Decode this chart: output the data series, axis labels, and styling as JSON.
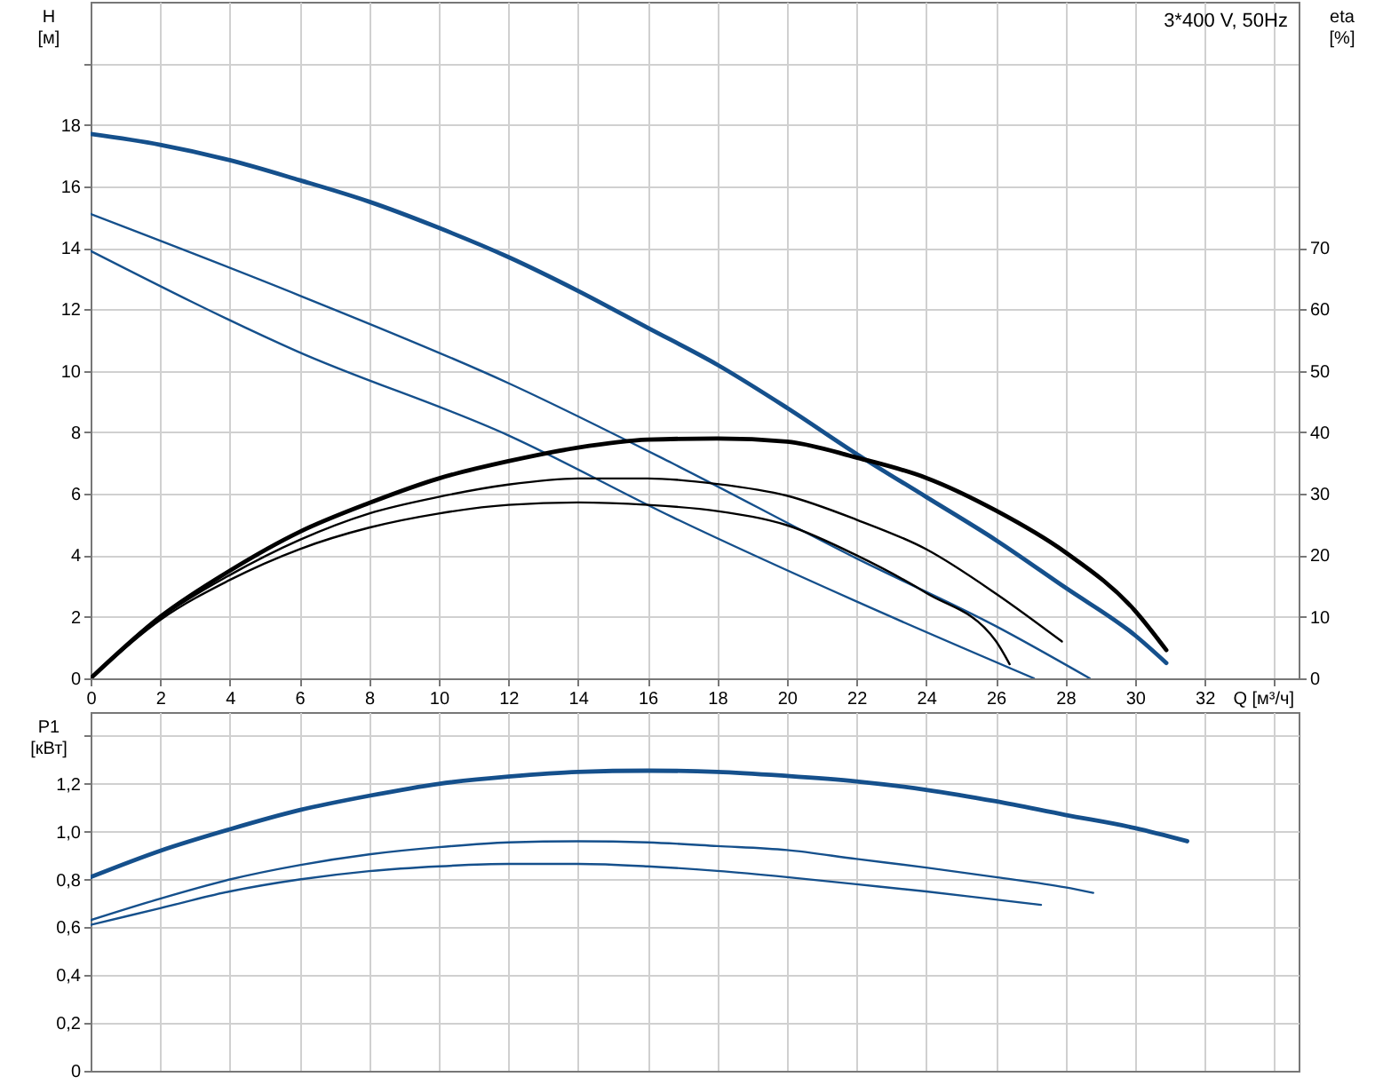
{
  "chart_data": [
    {
      "type": "line",
      "title": "3*400 V, 50Hz",
      "xlabel": "Q [м³/ч]",
      "ylabel": "H\n[м]",
      "y2label": "eta\n[%]",
      "xlim": [
        0,
        34.7
      ],
      "xticks": [
        0,
        2,
        4,
        6,
        8,
        10,
        12,
        14,
        16,
        18,
        20,
        22,
        24,
        26,
        28,
        30,
        32,
        {
          "value": 34,
          "label": null
        }
      ],
      "ylim": [
        0,
        22
      ],
      "yticks": [
        0,
        2,
        4,
        6,
        8,
        10,
        12,
        14,
        16,
        18,
        {
          "value": 20,
          "label": null
        }
      ],
      "y2lim": [
        0,
        110
      ],
      "y2ticks": [
        0,
        10,
        20,
        30,
        40,
        50,
        60,
        70
      ],
      "grid": true,
      "legend": false,
      "marker": "none",
      "line_style": "solid",
      "series": [
        {
          "color": "#15508c",
          "x": [
            0,
            2,
            4,
            6,
            8,
            10,
            12,
            14,
            16,
            18,
            20,
            22,
            24,
            26,
            28,
            30,
            30.9
          ],
          "values": [
            17.7,
            17.35,
            16.85,
            16.2,
            15.5,
            14.65,
            13.7,
            12.6,
            11.4,
            10.2,
            8.8,
            7.3,
            5.9,
            4.5,
            2.95,
            1.4,
            0.5
          ]
        },
        {
          "color": "#15508c",
          "x": [
            0,
            6,
            12,
            16.7,
            22,
            26,
            28.7
          ],
          "values": [
            15.1,
            12.45,
            9.6,
            7.0,
            3.9,
            1.7,
            0
          ]
        },
        {
          "color": "#15508c",
          "x": [
            0,
            5.9,
            12,
            16.7,
            22,
            27.1
          ],
          "values": [
            13.9,
            10.65,
            7.9,
            5.25,
            2.5,
            0
          ]
        },
        {
          "color": "#000000",
          "axis": "y2",
          "x": [
            0,
            2,
            4,
            6,
            8,
            10,
            12,
            14,
            16,
            18,
            20,
            22,
            24,
            26,
            28,
            30,
            30.9
          ],
          "values": [
            0,
            10,
            17.5,
            23.8,
            28.5,
            32.5,
            35.3,
            37.5,
            38.8,
            39,
            38.5,
            35.9,
            32.6,
            27.3,
            20.5,
            11,
            4.6
          ]
        },
        {
          "color": "#000000",
          "axis": "y2",
          "x": [
            0,
            2,
            4,
            6,
            8,
            10,
            12,
            14,
            16,
            18,
            20,
            22,
            24,
            26,
            27.9
          ],
          "values": [
            0,
            9.8,
            16.8,
            22.5,
            26.8,
            29.5,
            31.5,
            32.5,
            32.5,
            31.6,
            29.7,
            25.8,
            21,
            13.8,
            6
          ]
        },
        {
          "color": "#000000",
          "axis": "y2",
          "x": [
            0,
            2,
            4,
            6,
            8,
            10,
            12,
            14,
            16,
            18,
            20,
            22,
            24,
            26,
            26.4
          ],
          "values": [
            0,
            9.5,
            16,
            21,
            24.5,
            26.8,
            28.2,
            28.6,
            28.2,
            27.2,
            24.9,
            20,
            13.9,
            6.1,
            2.3
          ]
        }
      ]
    },
    {
      "type": "line",
      "ylabel": "P1\n[кВт]",
      "xlim": [
        0,
        34.7
      ],
      "xticks": [
        0,
        2,
        4,
        6,
        8,
        10,
        12,
        14,
        16,
        18,
        20,
        22,
        24,
        26,
        28,
        30,
        32,
        34
      ],
      "ylim": [
        0,
        1.5
      ],
      "yticks": [
        0,
        {
          "value": 0.2,
          "label": "0,2"
        },
        {
          "value": 0.4,
          "label": "0,4"
        },
        {
          "value": 0.6,
          "label": "0,6"
        },
        {
          "value": 0.8,
          "label": "0,8"
        },
        {
          "value": 1.0,
          "label": "1,0"
        },
        {
          "value": 1.2,
          "label": "1,2"
        },
        {
          "value": 1.4,
          "label": null
        }
      ],
      "tick_labels": "y",
      "grid": true,
      "legend": false,
      "marker": "none",
      "line_style": "solid",
      "series": [
        {
          "color": "#15508c",
          "x": [
            0,
            2,
            4,
            6,
            8,
            10,
            12,
            14,
            16,
            18,
            20,
            22,
            24,
            26,
            28,
            30,
            31.5
          ],
          "values": [
            0.81,
            0.92,
            1.01,
            1.09,
            1.15,
            1.2,
            1.23,
            1.25,
            1.255,
            1.25,
            1.233,
            1.21,
            1.175,
            1.127,
            1.07,
            1.015,
            0.96
          ]
        },
        {
          "color": "#15508c",
          "x": [
            0,
            2,
            4,
            6,
            8,
            10,
            12,
            14,
            16,
            18,
            20,
            22,
            24,
            26,
            28,
            28.8
          ],
          "values": [
            0.63,
            0.72,
            0.8,
            0.86,
            0.905,
            0.935,
            0.955,
            0.96,
            0.955,
            0.94,
            0.923,
            0.886,
            0.85,
            0.81,
            0.767,
            0.744
          ]
        },
        {
          "color": "#15508c",
          "x": [
            0,
            2,
            4,
            6,
            8,
            10,
            12,
            14,
            16,
            18,
            20,
            22,
            24,
            26,
            27.3
          ],
          "values": [
            0.61,
            0.68,
            0.75,
            0.8,
            0.835,
            0.855,
            0.865,
            0.865,
            0.855,
            0.836,
            0.81,
            0.78,
            0.75,
            0.716,
            0.694
          ]
        }
      ]
    }
  ]
}
